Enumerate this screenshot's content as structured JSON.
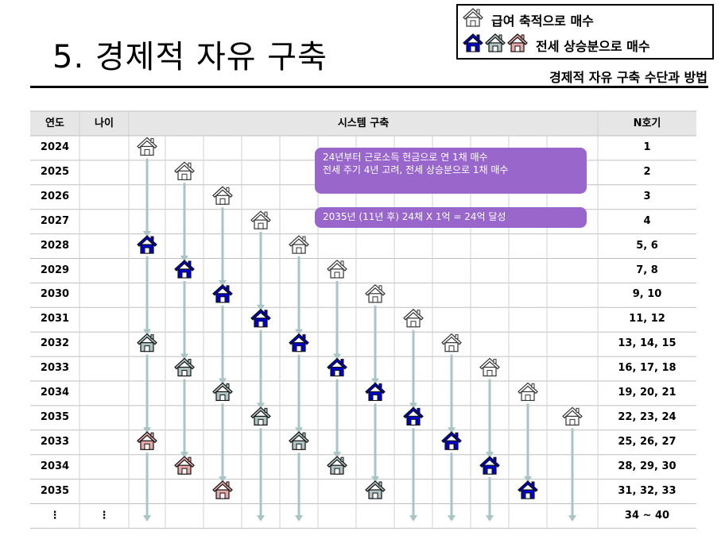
{
  "title": "5. 경제적 자유 구축",
  "subtitle": "경제적 자유 구축 수단과 방법",
  "legend": {
    "salary_label": "급여 축적으로 매수",
    "jeonse_label": "전세 상승분으로 매수",
    "salary_icon": "white-house-icon",
    "jeonse_icons": [
      "blue-house-icon",
      "gray-house-icon",
      "pink-house-icon"
    ]
  },
  "colors": {
    "white": "#ffffff",
    "blue": "#0000cc",
    "gray": "#b0c4c4",
    "pink": "#e8a8a8",
    "arrow": "#a9c4c4",
    "note": "#9966cc"
  },
  "table": {
    "headers": {
      "year": "연도",
      "age": "나이",
      "system": "시스템 구축",
      "count": "N호기"
    },
    "rows": [
      {
        "year": "2024",
        "age": "",
        "count": "1"
      },
      {
        "year": "2025",
        "age": "",
        "count": "2"
      },
      {
        "year": "2026",
        "age": "",
        "count": "3"
      },
      {
        "year": "2027",
        "age": "",
        "count": "4"
      },
      {
        "year": "2028",
        "age": "",
        "count": "5, 6"
      },
      {
        "year": "2029",
        "age": "",
        "count": "7, 8"
      },
      {
        "year": "2030",
        "age": "",
        "count": "9, 10"
      },
      {
        "year": "2031",
        "age": "",
        "count": "11, 12"
      },
      {
        "year": "2032",
        "age": "",
        "count": "13, 14, 15"
      },
      {
        "year": "2033",
        "age": "",
        "count": "16, 17, 18"
      },
      {
        "year": "2034",
        "age": "",
        "count": "19, 20, 21"
      },
      {
        "year": "2035",
        "age": "",
        "count": "22, 23, 24"
      },
      {
        "year": "2033",
        "age": "",
        "count": "25, 26, 27"
      },
      {
        "year": "2034",
        "age": "",
        "count": "28, 29, 30"
      },
      {
        "year": "2035",
        "age": "",
        "count": "31, 32, 33"
      },
      {
        "year": "⋮",
        "age": "⋮",
        "count": "34 ~ 40"
      }
    ]
  },
  "houses": [
    {
      "row": 0,
      "col": 0,
      "type": "white"
    },
    {
      "row": 1,
      "col": 1,
      "type": "white"
    },
    {
      "row": 2,
      "col": 2,
      "type": "white"
    },
    {
      "row": 3,
      "col": 3,
      "type": "white"
    },
    {
      "row": 4,
      "col": 0,
      "type": "blue"
    },
    {
      "row": 4,
      "col": 4,
      "type": "white"
    },
    {
      "row": 5,
      "col": 1,
      "type": "blue"
    },
    {
      "row": 5,
      "col": 5,
      "type": "white"
    },
    {
      "row": 6,
      "col": 2,
      "type": "blue"
    },
    {
      "row": 6,
      "col": 6,
      "type": "white"
    },
    {
      "row": 7,
      "col": 3,
      "type": "blue"
    },
    {
      "row": 7,
      "col": 7,
      "type": "white"
    },
    {
      "row": 8,
      "col": 0,
      "type": "gray"
    },
    {
      "row": 8,
      "col": 4,
      "type": "blue"
    },
    {
      "row": 8,
      "col": 8,
      "type": "white"
    },
    {
      "row": 9,
      "col": 1,
      "type": "gray"
    },
    {
      "row": 9,
      "col": 5,
      "type": "blue"
    },
    {
      "row": 9,
      "col": 9,
      "type": "white"
    },
    {
      "row": 10,
      "col": 2,
      "type": "gray"
    },
    {
      "row": 10,
      "col": 6,
      "type": "blue"
    },
    {
      "row": 10,
      "col": 10,
      "type": "white"
    },
    {
      "row": 11,
      "col": 3,
      "type": "gray"
    },
    {
      "row": 11,
      "col": 7,
      "type": "blue"
    },
    {
      "row": 11,
      "col": 11,
      "type": "white"
    },
    {
      "row": 12,
      "col": 0,
      "type": "pink"
    },
    {
      "row": 12,
      "col": 4,
      "type": "gray"
    },
    {
      "row": 12,
      "col": 8,
      "type": "blue"
    },
    {
      "row": 13,
      "col": 1,
      "type": "pink"
    },
    {
      "row": 13,
      "col": 5,
      "type": "gray"
    },
    {
      "row": 13,
      "col": 9,
      "type": "blue"
    },
    {
      "row": 14,
      "col": 2,
      "type": "pink"
    },
    {
      "row": 14,
      "col": 6,
      "type": "gray"
    },
    {
      "row": 14,
      "col": 10,
      "type": "blue"
    }
  ],
  "arrows": [
    {
      "col": 0,
      "from": 0,
      "to": 4
    },
    {
      "col": 0,
      "from": 4,
      "to": 8
    },
    {
      "col": 0,
      "from": 8,
      "to": 12
    },
    {
      "col": 0,
      "from": 12,
      "to": 15
    },
    {
      "col": 1,
      "from": 1,
      "to": 5
    },
    {
      "col": 1,
      "from": 5,
      "to": 9
    },
    {
      "col": 1,
      "from": 9,
      "to": 13
    },
    {
      "col": 2,
      "from": 2,
      "to": 6
    },
    {
      "col": 2,
      "from": 6,
      "to": 10
    },
    {
      "col": 2,
      "from": 10,
      "to": 14
    },
    {
      "col": 3,
      "from": 3,
      "to": 7
    },
    {
      "col": 3,
      "from": 7,
      "to": 11
    },
    {
      "col": 3,
      "from": 11,
      "to": 15
    },
    {
      "col": 4,
      "from": 4,
      "to": 8
    },
    {
      "col": 4,
      "from": 8,
      "to": 12
    },
    {
      "col": 4,
      "from": 12,
      "to": 15
    },
    {
      "col": 5,
      "from": 5,
      "to": 9
    },
    {
      "col": 5,
      "from": 9,
      "to": 13
    },
    {
      "col": 6,
      "from": 6,
      "to": 10
    },
    {
      "col": 6,
      "from": 10,
      "to": 14
    },
    {
      "col": 7,
      "from": 7,
      "to": 11
    },
    {
      "col": 7,
      "from": 11,
      "to": 15
    },
    {
      "col": 8,
      "from": 8,
      "to": 12
    },
    {
      "col": 8,
      "from": 12,
      "to": 15
    },
    {
      "col": 9,
      "from": 9,
      "to": 13
    },
    {
      "col": 9,
      "from": 13,
      "to": 15
    },
    {
      "col": 10,
      "from": 10,
      "to": 14
    },
    {
      "col": 11,
      "from": 11,
      "to": 15
    }
  ],
  "notes": {
    "note1_line1": "24년부터 근로소득 현금으로 연 1채 매수",
    "note1_line2": "전세 주기 4년 고려, 전세 상승분으로 1채 매수",
    "note2": "2035년 (11년 후) 24채 X 1억 = 24억 달성"
  }
}
